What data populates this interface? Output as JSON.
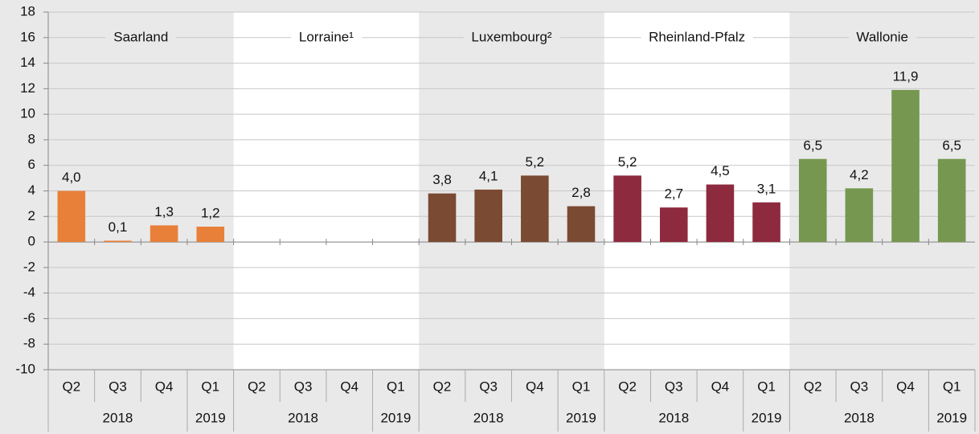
{
  "chart_data": {
    "type": "bar",
    "categories": [
      "Q2",
      "Q3",
      "Q4",
      "Q1"
    ],
    "years": [
      "2018",
      "2019"
    ],
    "series": [
      {
        "name": "Saarland",
        "color": "#e8803a",
        "values": [
          4.0,
          0.1,
          1.3,
          1.2
        ],
        "value_labels": [
          "4,0",
          "0,1",
          "1,3",
          "1,2"
        ]
      },
      {
        "name": "Lorraine¹",
        "color": "#999999",
        "values": [
          null,
          null,
          null,
          null
        ],
        "value_labels": [
          null,
          null,
          null,
          null
        ]
      },
      {
        "name": "Luxembourg²",
        "color": "#7b4a32",
        "values": [
          3.8,
          4.1,
          5.2,
          2.8
        ],
        "value_labels": [
          "3,8",
          "4,1",
          "5,2",
          "2,8"
        ]
      },
      {
        "name": "Rheinland-Pfalz",
        "color": "#8e2a3e",
        "values": [
          5.2,
          2.7,
          4.5,
          3.1
        ],
        "value_labels": [
          "5,2",
          "2,7",
          "4,5",
          "3,1"
        ]
      },
      {
        "name": "Wallonie",
        "color": "#76974f",
        "values": [
          6.5,
          4.2,
          11.9,
          6.5
        ],
        "value_labels": [
          "6,5",
          "4,2",
          "11,9",
          "6,5"
        ]
      }
    ],
    "ylim": [
      -10,
      18
    ],
    "yticks": [
      -10,
      -8,
      -6,
      -4,
      -2,
      0,
      2,
      4,
      6,
      8,
      10,
      12,
      14,
      16,
      18
    ],
    "grid": true
  }
}
